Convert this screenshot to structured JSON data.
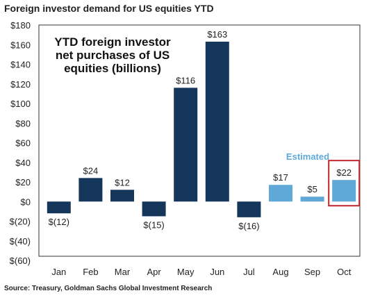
{
  "chart_data": {
    "type": "bar",
    "title": "Foreign investor demand for US equities YTD",
    "annotation_lines": [
      "YTD foreign investor",
      "net purchases of US",
      "equities (billions)"
    ],
    "estimated_label": "Estimated",
    "source": "Source: Treasury, Goldman Sachs Global Investment Research",
    "categories": [
      "Jan",
      "Feb",
      "Mar",
      "Apr",
      "May",
      "Jun",
      "Jul",
      "Aug",
      "Sep",
      "Oct"
    ],
    "values": [
      -12,
      24,
      12,
      -15,
      116,
      163,
      -16,
      17,
      5,
      22
    ],
    "data_labels": [
      "$(12)",
      "$24",
      "$12",
      "$(15)",
      "$116",
      "$163",
      "$(16)",
      "$17",
      "$5",
      "$22"
    ],
    "estimated": [
      false,
      false,
      false,
      false,
      false,
      false,
      false,
      true,
      true,
      true
    ],
    "highlighted": [
      false,
      false,
      false,
      false,
      false,
      false,
      false,
      false,
      false,
      true
    ],
    "yticks": [
      180,
      160,
      140,
      120,
      100,
      80,
      60,
      40,
      20,
      0,
      -20,
      -40,
      -60
    ],
    "ytick_labels": [
      "$180",
      "$160",
      "$140",
      "$120",
      "$100",
      "$80",
      "$60",
      "$40",
      "$20",
      "$0",
      "$(20)",
      "$(40)",
      "$(60)"
    ],
    "ylim": [
      -60,
      180
    ],
    "colors": {
      "actual": "#14365a",
      "estimated": "#5fa8d8",
      "highlight_box": "#c0262c",
      "estimated_text": "#5fa8d8"
    }
  }
}
